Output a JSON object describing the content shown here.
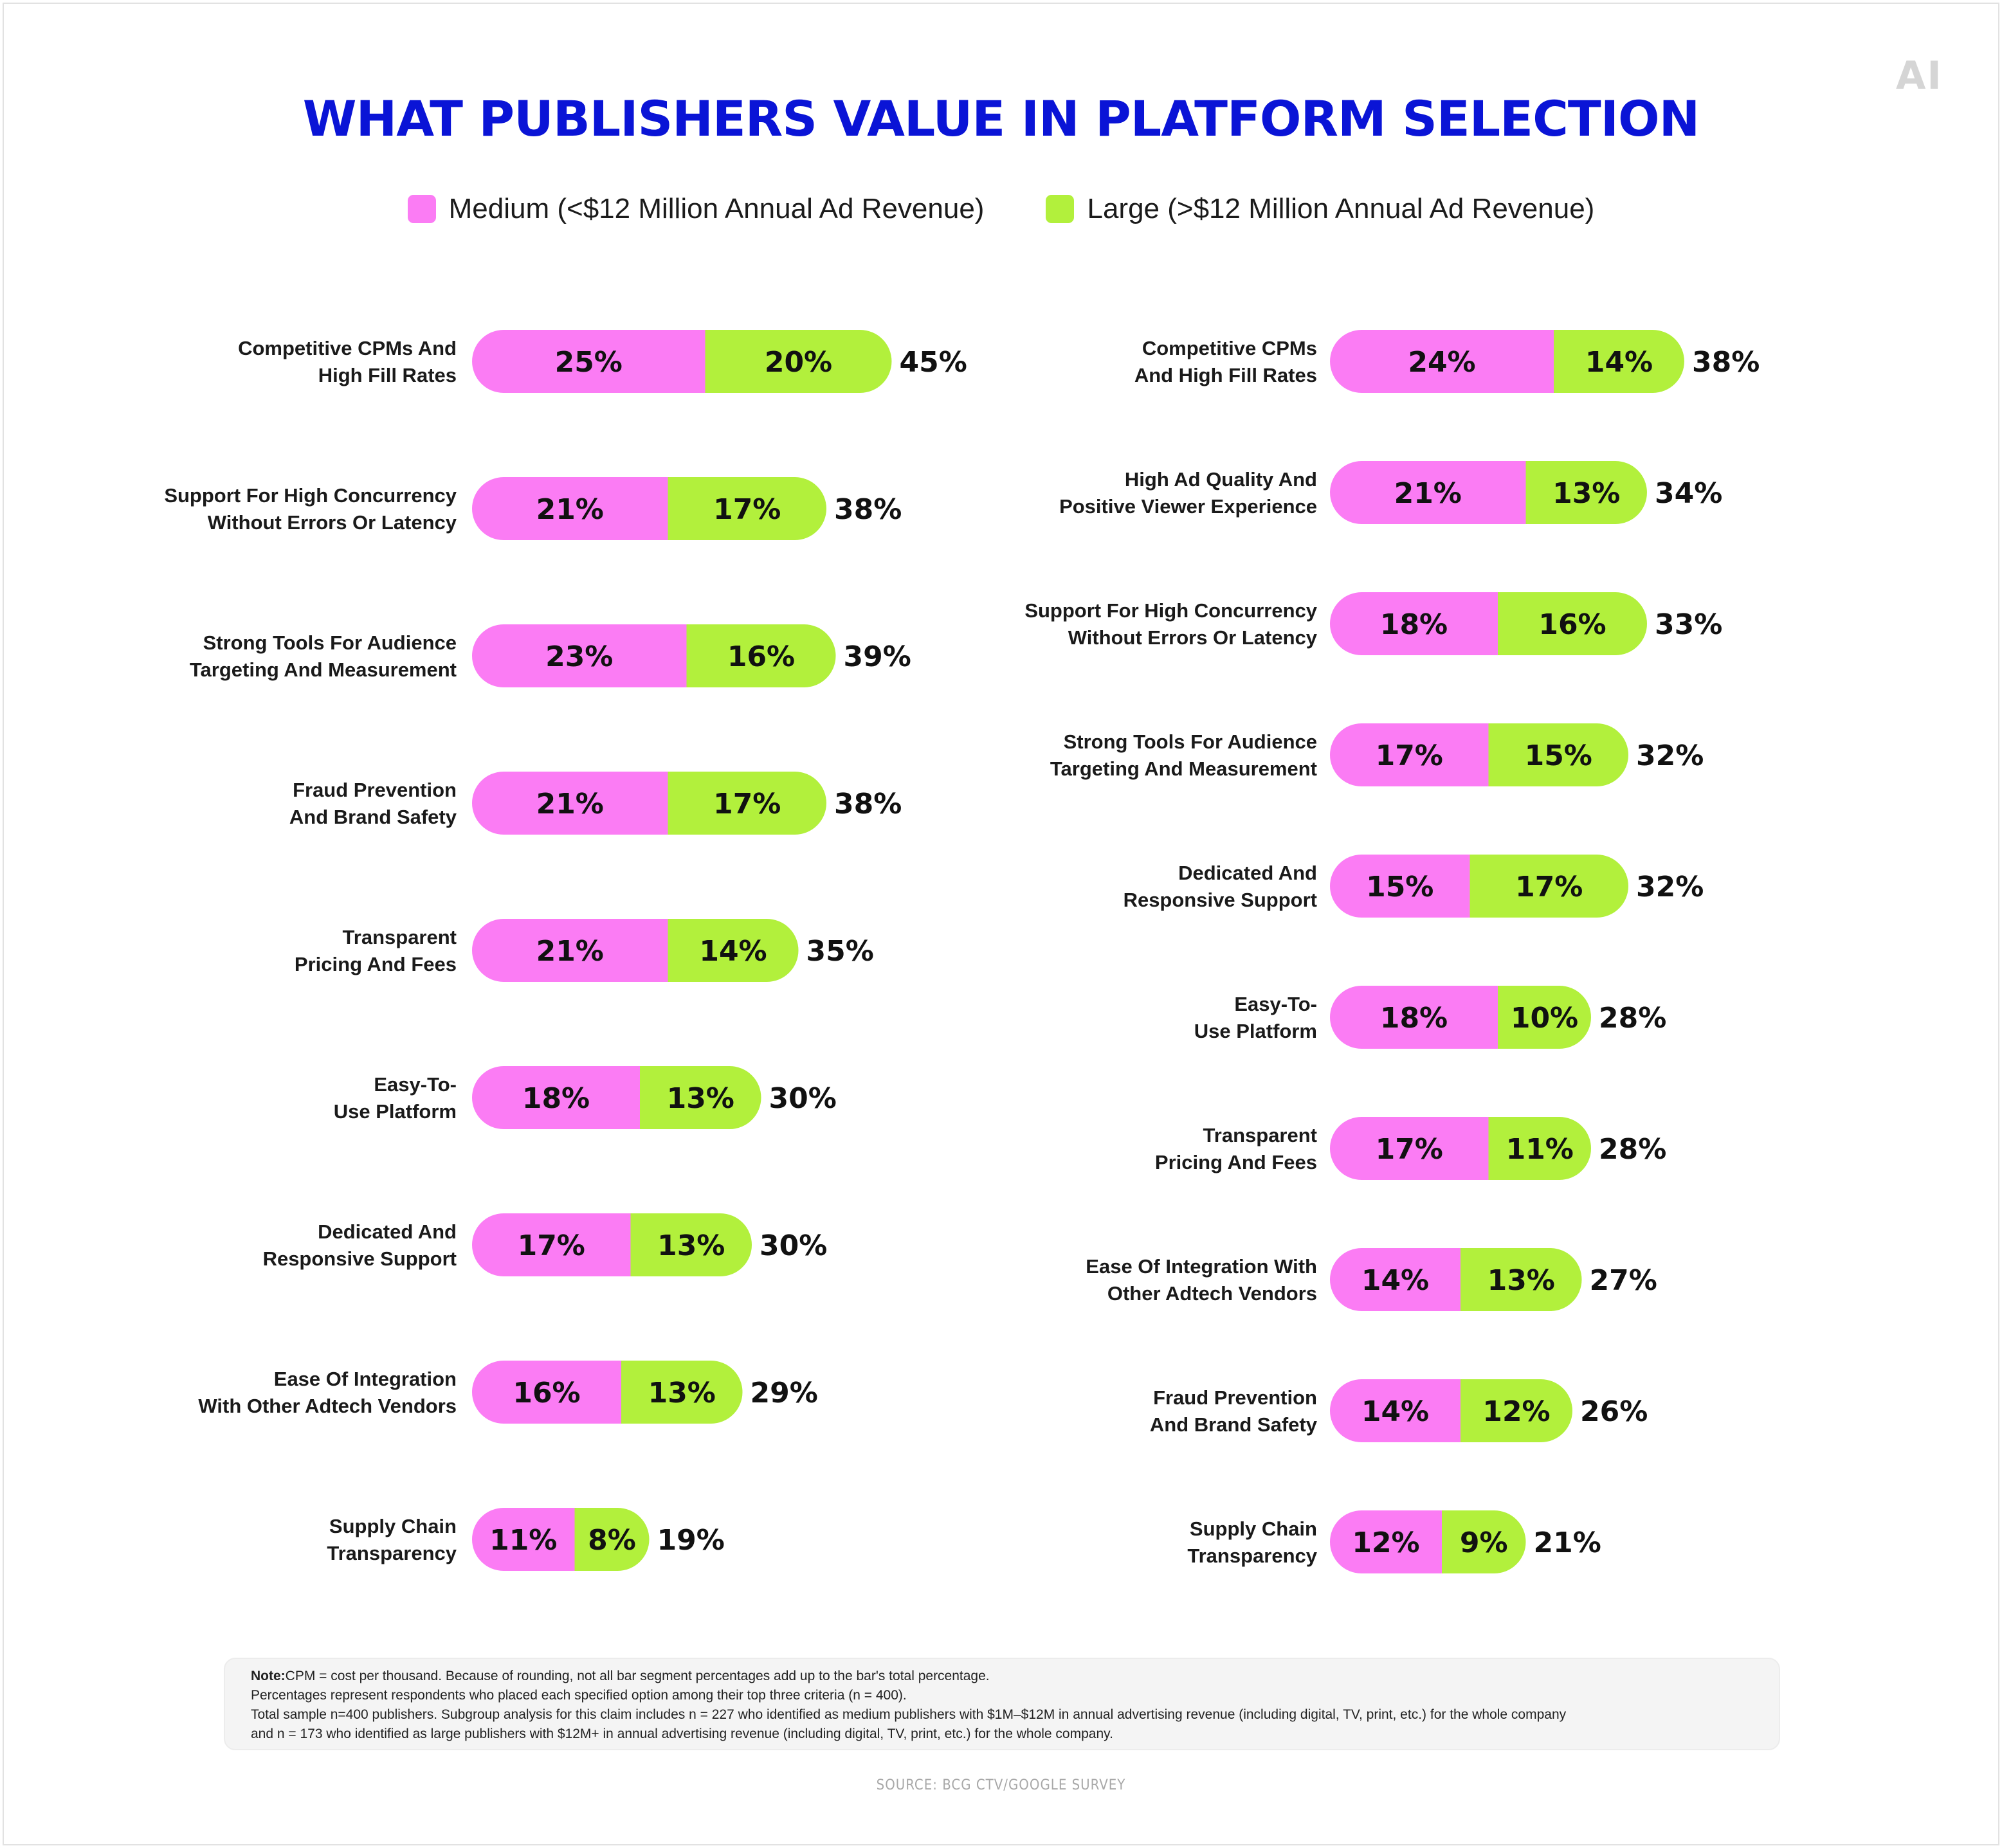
{
  "title": "WHAT PUBLISHERS VALUE IN PLATFORM SELECTION",
  "logo_text": "AI",
  "colors": {
    "medium": "#fb7cf4",
    "large": "#b2f03c",
    "title": "#0a14d6"
  },
  "legend": {
    "medium": "Medium (<$12 Million Annual Ad Revenue)",
    "large": "Large (>$12 Million Annual Ad Revenue)"
  },
  "chart_data": [
    {
      "type": "bar",
      "orientation": "horizontal-stacked",
      "categories": [
        [
          "Competitive CPMs And",
          "High Fill Rates"
        ],
        [
          "Support For High Concurrency",
          "Without Errors Or Latency"
        ],
        [
          "Strong Tools For Audience",
          "Targeting And Measurement"
        ],
        [
          "Fraud Prevention",
          "And Brand Safety"
        ],
        [
          "Transparent",
          "Pricing And Fees"
        ],
        [
          "Easy-To-",
          "Use Platform"
        ],
        [
          "Dedicated And",
          "Responsive Support"
        ],
        [
          "Ease Of Integration",
          "With Other Adtech Vendors"
        ],
        [
          "Supply Chain",
          "Transparency"
        ]
      ],
      "series": [
        {
          "name": "Medium (<$12 Million Annual Ad Revenue)",
          "values": [
            25,
            21,
            23,
            21,
            21,
            18,
            17,
            16,
            11
          ]
        },
        {
          "name": "Large (>$12 Million Annual Ad Revenue)",
          "values": [
            20,
            17,
            16,
            17,
            14,
            13,
            13,
            13,
            8
          ]
        }
      ],
      "totals": [
        45,
        38,
        39,
        38,
        35,
        30,
        30,
        29,
        19
      ]
    },
    {
      "type": "bar",
      "orientation": "horizontal-stacked",
      "categories": [
        [
          "Competitive CPMs",
          "And High Fill Rates"
        ],
        [
          "High Ad Quality And",
          "Positive Viewer Experience"
        ],
        [
          "Support For High Concurrency",
          "Without Errors Or Latency"
        ],
        [
          "Strong Tools For Audience",
          "Targeting And Measurement"
        ],
        [
          "Dedicated And",
          "Responsive Support"
        ],
        [
          "Easy-To-",
          "Use Platform"
        ],
        [
          "Transparent",
          "Pricing And Fees"
        ],
        [
          "Ease Of Integration With",
          "Other Adtech Vendors"
        ],
        [
          "Fraud Prevention",
          "And Brand Safety"
        ],
        [
          "Supply Chain",
          "Transparency"
        ]
      ],
      "series": [
        {
          "name": "Medium (<$12 Million Annual Ad Revenue)",
          "values": [
            24,
            21,
            18,
            17,
            15,
            18,
            17,
            14,
            14,
            12
          ]
        },
        {
          "name": "Large (>$12 Million Annual Ad Revenue)",
          "values": [
            14,
            13,
            16,
            15,
            17,
            10,
            11,
            13,
            12,
            9
          ]
        }
      ],
      "totals": [
        38,
        34,
        33,
        32,
        32,
        28,
        28,
        27,
        26,
        21
      ]
    }
  ],
  "note": {
    "label": "Note:",
    "line1": "CPM = cost per thousand. Because of rounding, not all bar segment percentages add up to the bar's total percentage.",
    "line2": "Percentages represent respondents who placed each specified option among their top three criteria (n = 400).",
    "line3": "Total sample n=400 publishers. Subgroup analysis for this claim includes n = 227 who identified as medium publishers with $1M–$12M in annual advertising revenue (including digital, TV, print, etc.) for the whole company",
    "line4": "and n = 173 who identified as large publishers with $12M+ in annual advertising revenue (including digital, TV, print, etc.) for the whole company."
  },
  "source": "SOURCE: BCG CTV/GOOGLE SURVEY"
}
